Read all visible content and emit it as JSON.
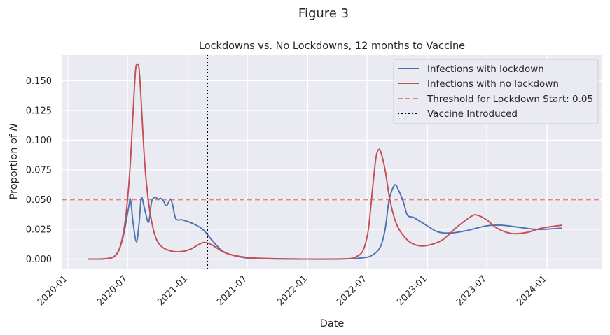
{
  "figure_title": "Figure 3",
  "chart_data": {
    "type": "line",
    "title": "Lockdowns vs. No Lockdowns, 12 months to Vaccine",
    "xlabel": "Date",
    "ylabel": "Proportion of ",
    "ylabel_italic": "N",
    "xlim": [
      "2019-12-15",
      "2024-06-15"
    ],
    "ylim": [
      -0.0085,
      0.172
    ],
    "x_ticks": [
      "2020-01",
      "2020-07",
      "2021-01",
      "2021-07",
      "2022-01",
      "2022-07",
      "2023-01",
      "2023-07",
      "2024-01"
    ],
    "y_ticks": [
      "0.000",
      "0.025",
      "0.050",
      "0.075",
      "0.100",
      "0.125",
      "0.150"
    ],
    "grid": true,
    "legend_position": "upper-right",
    "series": [
      {
        "name": "Infections with lockdown",
        "color": "#4c72b0",
        "style": "solid",
        "points": [
          [
            "2020-03-01",
            0.0
          ],
          [
            "2020-04-01",
            0.0
          ],
          [
            "2020-05-01",
            0.0005
          ],
          [
            "2020-05-20",
            0.002
          ],
          [
            "2020-06-05",
            0.008
          ],
          [
            "2020-06-20",
            0.022
          ],
          [
            "2020-07-05",
            0.045
          ],
          [
            "2020-07-10",
            0.05
          ],
          [
            "2020-07-18",
            0.03
          ],
          [
            "2020-07-28",
            0.0145
          ],
          [
            "2020-08-05",
            0.03
          ],
          [
            "2020-08-12",
            0.0515
          ],
          [
            "2020-08-22",
            0.042
          ],
          [
            "2020-09-03",
            0.031
          ],
          [
            "2020-09-12",
            0.048
          ],
          [
            "2020-09-22",
            0.052
          ],
          [
            "2020-10-02",
            0.0505
          ],
          [
            "2020-10-10",
            0.051
          ],
          [
            "2020-10-18",
            0.049
          ],
          [
            "2020-10-28",
            0.045
          ],
          [
            "2020-11-08",
            0.0505
          ],
          [
            "2020-11-15",
            0.046
          ],
          [
            "2020-11-25",
            0.034
          ],
          [
            "2020-12-15",
            0.033
          ],
          [
            "2021-01-15",
            0.03
          ],
          [
            "2021-02-15",
            0.025
          ],
          [
            "2021-03-15",
            0.016
          ],
          [
            "2021-04-15",
            0.007
          ],
          [
            "2021-05-15",
            0.0035
          ],
          [
            "2021-06-15",
            0.0015
          ],
          [
            "2021-08-01",
            0.0005
          ],
          [
            "2022-01-01",
            0.0
          ],
          [
            "2022-05-01",
            0.0003
          ],
          [
            "2022-06-15",
            0.001
          ],
          [
            "2022-07-15",
            0.003
          ],
          [
            "2022-08-10",
            0.01
          ],
          [
            "2022-08-25",
            0.025
          ],
          [
            "2022-09-05",
            0.048
          ],
          [
            "2022-09-15",
            0.058
          ],
          [
            "2022-09-25",
            0.0625
          ],
          [
            "2022-10-05",
            0.058
          ],
          [
            "2022-10-20",
            0.048
          ],
          [
            "2022-11-01",
            0.037
          ],
          [
            "2022-11-20",
            0.035
          ],
          [
            "2022-12-20",
            0.03
          ],
          [
            "2023-02-01",
            0.023
          ],
          [
            "2023-03-15",
            0.022
          ],
          [
            "2023-05-01",
            0.024
          ],
          [
            "2023-07-01",
            0.028
          ],
          [
            "2023-08-15",
            0.0285
          ],
          [
            "2023-10-01",
            0.027
          ],
          [
            "2023-12-01",
            0.025
          ],
          [
            "2024-02-15",
            0.026
          ]
        ]
      },
      {
        "name": "Infections with no lockdown",
        "color": "#c44e52",
        "style": "solid",
        "points": [
          [
            "2020-03-01",
            0.0
          ],
          [
            "2020-04-01",
            0.0
          ],
          [
            "2020-05-01",
            0.0005
          ],
          [
            "2020-05-25",
            0.003
          ],
          [
            "2020-06-10",
            0.012
          ],
          [
            "2020-06-25",
            0.035
          ],
          [
            "2020-07-08",
            0.075
          ],
          [
            "2020-07-18",
            0.125
          ],
          [
            "2020-07-25",
            0.158
          ],
          [
            "2020-07-30",
            0.1635
          ],
          [
            "2020-08-05",
            0.16
          ],
          [
            "2020-08-12",
            0.13
          ],
          [
            "2020-08-20",
            0.09
          ],
          [
            "2020-08-28",
            0.062
          ],
          [
            "2020-09-10",
            0.035
          ],
          [
            "2020-09-25",
            0.018
          ],
          [
            "2020-10-15",
            0.01
          ],
          [
            "2020-11-15",
            0.0065
          ],
          [
            "2020-12-15",
            0.0065
          ],
          [
            "2021-01-10",
            0.0085
          ],
          [
            "2021-02-01",
            0.012
          ],
          [
            "2021-02-20",
            0.014
          ],
          [
            "2021-03-15",
            0.012
          ],
          [
            "2021-04-15",
            0.0065
          ],
          [
            "2021-05-15",
            0.0035
          ],
          [
            "2021-06-15",
            0.002
          ],
          [
            "2021-08-01",
            0.0008
          ],
          [
            "2022-01-01",
            0.0
          ],
          [
            "2022-05-01",
            0.0003
          ],
          [
            "2022-06-01",
            0.0025
          ],
          [
            "2022-06-20",
            0.008
          ],
          [
            "2022-07-05",
            0.025
          ],
          [
            "2022-07-18",
            0.06
          ],
          [
            "2022-07-28",
            0.085
          ],
          [
            "2022-08-05",
            0.092
          ],
          [
            "2022-08-12",
            0.09
          ],
          [
            "2022-08-25",
            0.075
          ],
          [
            "2022-09-10",
            0.048
          ],
          [
            "2022-10-01",
            0.028
          ],
          [
            "2022-11-01",
            0.016
          ],
          [
            "2022-12-01",
            0.0115
          ],
          [
            "2023-01-01",
            0.0115
          ],
          [
            "2023-02-15",
            0.016
          ],
          [
            "2023-04-01",
            0.027
          ],
          [
            "2023-05-15",
            0.036
          ],
          [
            "2023-06-01",
            0.037
          ],
          [
            "2023-07-01",
            0.033
          ],
          [
            "2023-08-01",
            0.026
          ],
          [
            "2023-09-15",
            0.0215
          ],
          [
            "2023-11-01",
            0.0225
          ],
          [
            "2023-12-15",
            0.026
          ],
          [
            "2024-02-15",
            0.0285
          ]
        ]
      }
    ],
    "threshold": {
      "name": "Threshold for Lockdown Start: 0.05",
      "value": 0.05,
      "color": "#f17e7e",
      "style": "dashed"
    },
    "vaccine": {
      "name": "Vaccine Introduced",
      "date": "2021-03-01",
      "color": "#000000",
      "style": "dotted"
    }
  }
}
